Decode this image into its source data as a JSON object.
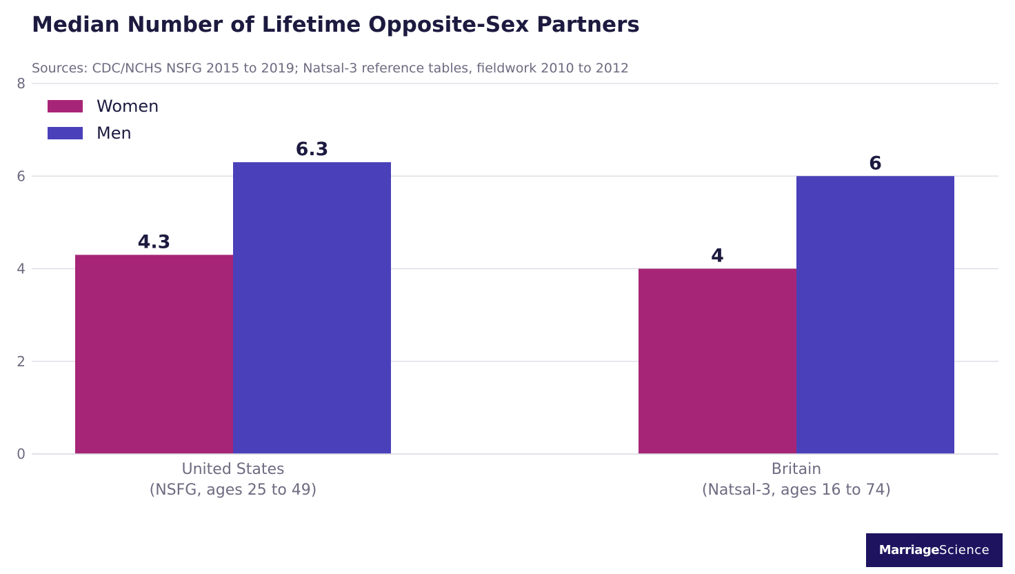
{
  "title": "Median Number of Lifetime Opposite-Sex Partners",
  "subtitle": "Sources: CDC/NCHS NSFG 2015 to 2019; Natsal-3 reference tables, fieldwork 2010 to 2012",
  "brand": {
    "part1": "Marriage",
    "part2": "Science",
    "background": "#1e135f"
  },
  "colors": {
    "title": "#1c1a3f",
    "muted_text": "#6d6b80",
    "gridline": "#d9d9e3",
    "data_label": "#1c1a3f"
  },
  "chart_data": {
    "type": "bar",
    "categories": [
      [
        "United States",
        "(NSFG, ages 25 to 49)"
      ],
      [
        "Britain",
        "(Natsal-3, ages 16 to 74)"
      ]
    ],
    "series": [
      {
        "name": "Women",
        "color": "#a72577",
        "values": [
          4.3,
          4
        ],
        "labels": [
          "4.3",
          "4"
        ]
      },
      {
        "name": "Men",
        "color": "#4a40b9",
        "values": [
          6.3,
          6
        ],
        "labels": [
          "6.3",
          "6"
        ]
      }
    ],
    "ylim": [
      0,
      8
    ],
    "yticks": [
      0,
      2,
      4,
      6,
      8
    ],
    "xlabel": "",
    "ylabel": "",
    "grid": true,
    "legend": "top-left"
  }
}
